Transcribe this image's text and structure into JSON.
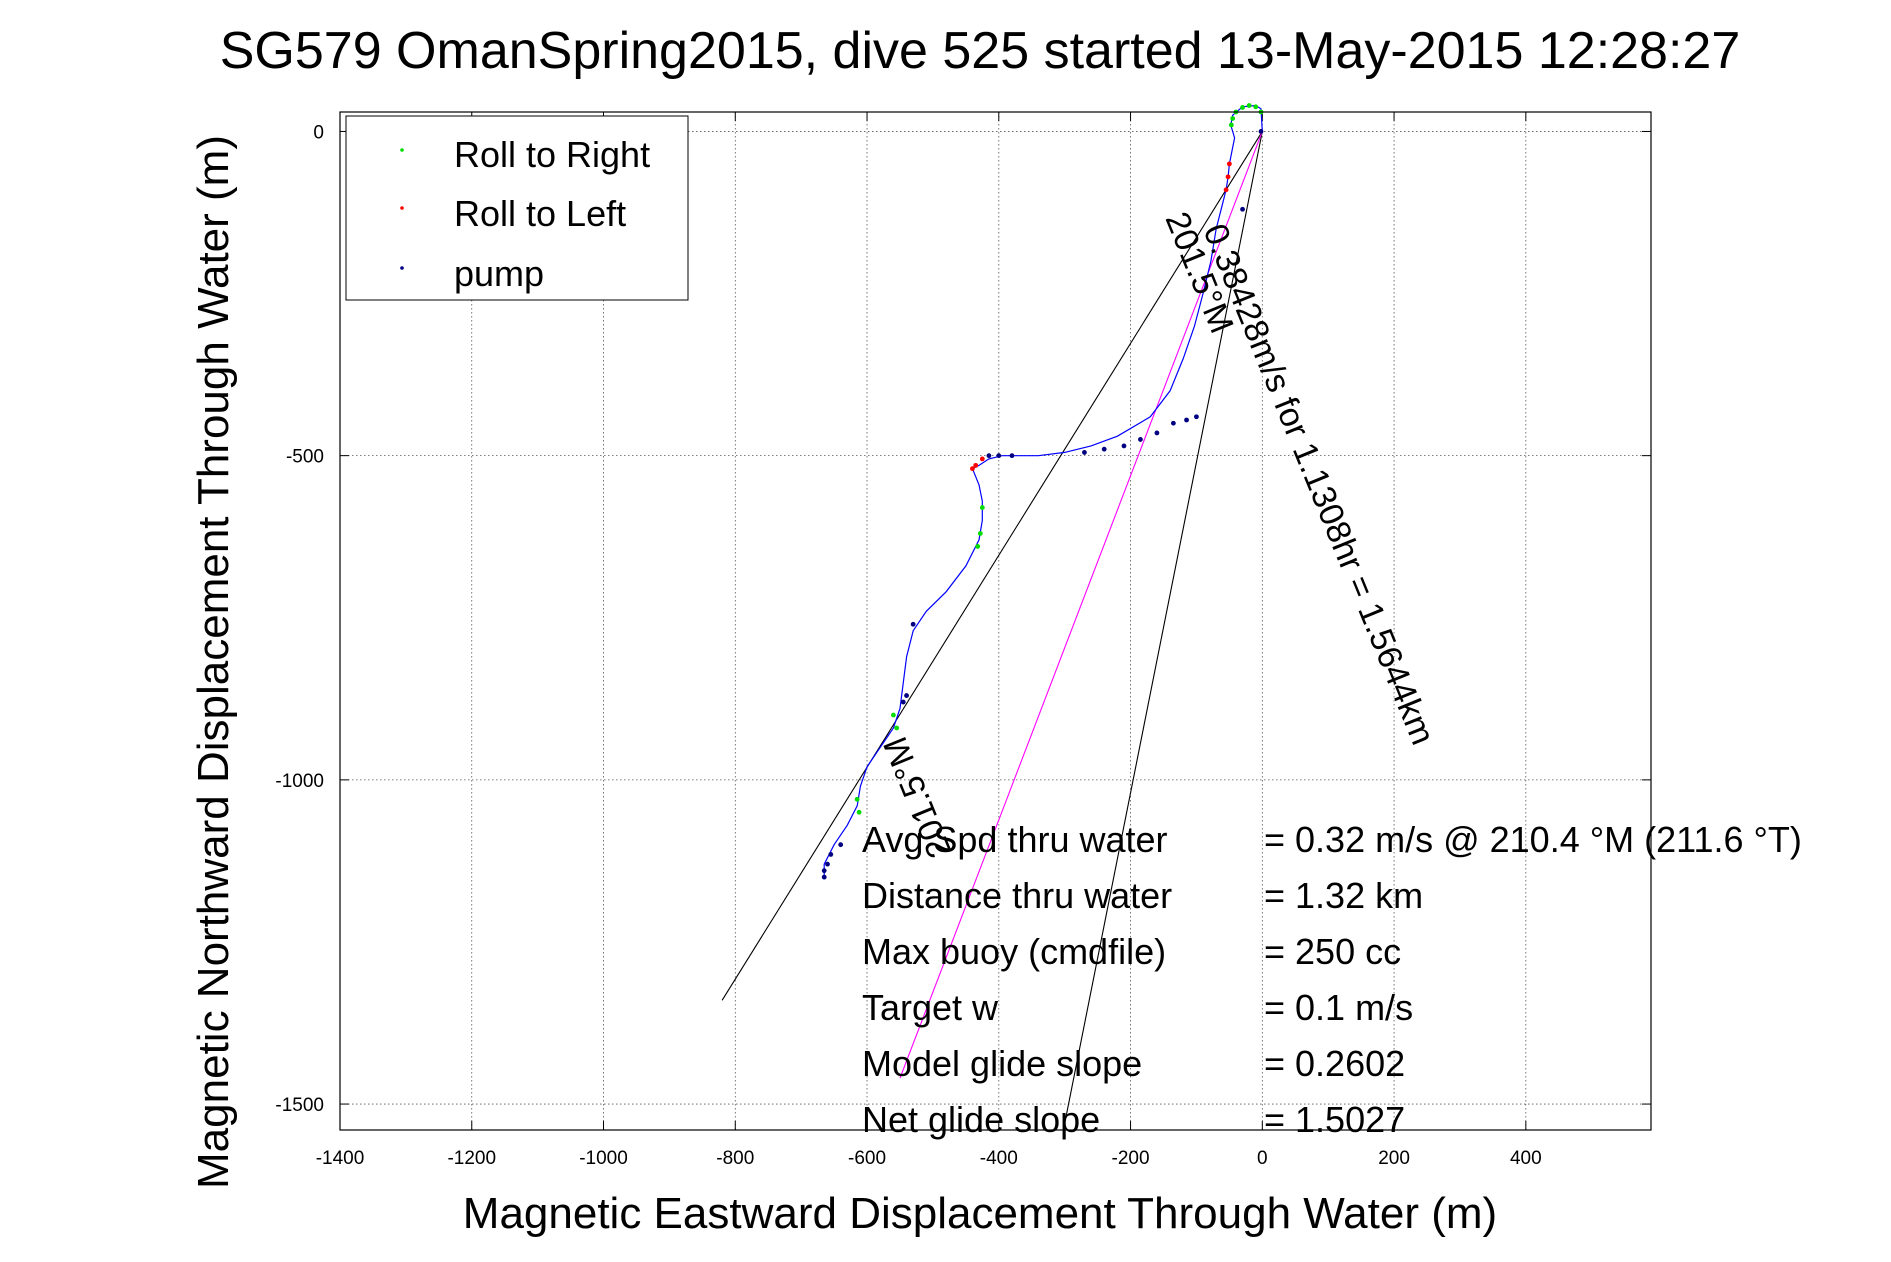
{
  "chart_data": {
    "type": "scatter",
    "title": "SG579 OmanSpring2015, dive 525 started 13-May-2015 12:28:27",
    "xlabel": "Magnetic Eastward Displacement Through Water (m)",
    "ylabel": "Magnetic Northward Displacement Through Water (m)",
    "xlim": [
      -1400,
      590
    ],
    "ylim": [
      -1540,
      30
    ],
    "xticks": [
      -1400,
      -1200,
      -1000,
      -800,
      -600,
      -400,
      -200,
      0,
      200,
      400
    ],
    "yticks": [
      0,
      -500,
      -1000,
      -1500
    ],
    "grid": true,
    "legend_position": "top-left",
    "legend": [
      {
        "label": "Roll to Right",
        "color": "#00dd00"
      },
      {
        "label": "Roll to Left",
        "color": "#ff0000"
      },
      {
        "label": "pump",
        "color": "#000080"
      }
    ],
    "track": {
      "color": "#0000ff",
      "points": [
        [
          0,
          0
        ],
        [
          -2,
          35
        ],
        [
          -10,
          40
        ],
        [
          -30,
          38
        ],
        [
          -45,
          25
        ],
        [
          -48,
          10
        ],
        [
          -45,
          0
        ],
        [
          -42,
          -10
        ],
        [
          -50,
          -50
        ],
        [
          -52,
          -70
        ],
        [
          -55,
          -90
        ],
        [
          -60,
          -110
        ],
        [
          -70,
          -150
        ],
        [
          -78,
          -200
        ],
        [
          -90,
          -250
        ],
        [
          -103,
          -300
        ],
        [
          -120,
          -350
        ],
        [
          -140,
          -400
        ],
        [
          -170,
          -440
        ],
        [
          -220,
          -470
        ],
        [
          -260,
          -485
        ],
        [
          -300,
          -495
        ],
        [
          -340,
          -500
        ],
        [
          -370,
          -500
        ],
        [
          -395,
          -500
        ],
        [
          -415,
          -505
        ],
        [
          -430,
          -515
        ],
        [
          -440,
          -520
        ],
        [
          -430,
          -545
        ],
        [
          -425,
          -570
        ],
        [
          -425,
          -600
        ],
        [
          -430,
          -630
        ],
        [
          -450,
          -670
        ],
        [
          -480,
          -710
        ],
        [
          -510,
          -740
        ],
        [
          -530,
          -770
        ],
        [
          -540,
          -810
        ],
        [
          -545,
          -850
        ],
        [
          -550,
          -890
        ],
        [
          -560,
          -920
        ],
        [
          -580,
          -950
        ],
        [
          -600,
          -980
        ],
        [
          -610,
          -1010
        ],
        [
          -615,
          -1040
        ],
        [
          -630,
          -1070
        ],
        [
          -650,
          -1100
        ],
        [
          -665,
          -1130
        ],
        [
          -665,
          -1150
        ]
      ]
    },
    "roll_right": [
      [
        -2,
        30
      ],
      [
        -10,
        38
      ],
      [
        -20,
        40
      ],
      [
        -30,
        37
      ],
      [
        -40,
        30
      ],
      [
        -45,
        20
      ],
      [
        -47,
        10
      ],
      [
        -425,
        -580
      ],
      [
        -428,
        -620
      ],
      [
        -432,
        -640
      ],
      [
        -560,
        -900
      ],
      [
        -555,
        -920
      ],
      [
        -615,
        -1030
      ],
      [
        -612,
        -1050
      ]
    ],
    "roll_left": [
      [
        -50,
        -50
      ],
      [
        -52,
        -70
      ],
      [
        -55,
        -90
      ],
      [
        -425,
        -505
      ],
      [
        -435,
        -515
      ],
      [
        -440,
        -520
      ]
    ],
    "pump": [
      [
        -2,
        0
      ],
      [
        -30,
        -120
      ],
      [
        -100,
        -440
      ],
      [
        -115,
        -445
      ],
      [
        -135,
        -450
      ],
      [
        -160,
        -465
      ],
      [
        -185,
        -475
      ],
      [
        -210,
        -485
      ],
      [
        -240,
        -490
      ],
      [
        -270,
        -495
      ],
      [
        -380,
        -500
      ],
      [
        -400,
        -500
      ],
      [
        -415,
        -500
      ],
      [
        -530,
        -760
      ],
      [
        -540,
        -870
      ],
      [
        -545,
        -880
      ],
      [
        -640,
        -1100
      ],
      [
        -655,
        -1115
      ],
      [
        -660,
        -1130
      ],
      [
        -665,
        -1140
      ],
      [
        -665,
        -1150
      ]
    ],
    "reference_lines": [
      {
        "from": [
          0,
          0
        ],
        "to": [
          -820,
          -1340
        ],
        "color": "#000000"
      },
      {
        "from": [
          0,
          0
        ],
        "to": [
          -300,
          -1530
        ],
        "color": "#000000"
      },
      {
        "from": [
          0,
          0
        ],
        "to": [
          -550,
          -1460
        ],
        "color": "#ff00ff"
      }
    ],
    "annotations": {
      "speed_line_label": "0.38428m/s for 1.1308hr = 1.5644km",
      "heading_label_a": "201.5°M",
      "heading_label_b": "201.5°M"
    },
    "info_labels": [
      "Avg Spd thru water",
      "Distance thru water",
      "Max buoy (cmdfile)",
      "Target w",
      "Model glide slope",
      "Net glide slope"
    ],
    "info_values": [
      "=  0.32 m/s @ 210.4 °M (211.6 °T)",
      "=  1.32 km",
      "= 250 cc",
      "= 0.1 m/s",
      "= 0.2602",
      "= 1.5027"
    ]
  }
}
